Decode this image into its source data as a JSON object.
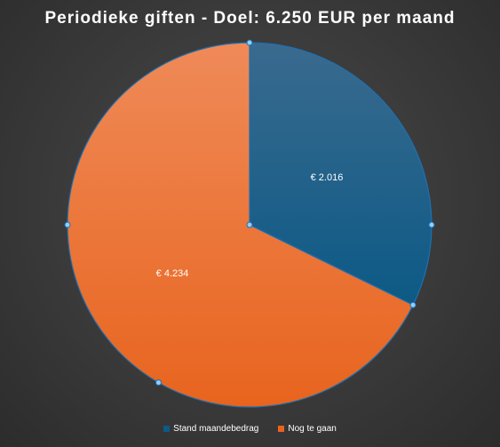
{
  "chart_data": {
    "type": "pie",
    "title": "Periodieke giften - Doel: 6.250 EUR per maand",
    "slices": [
      {
        "name": "Stand maandebedrag",
        "value": 2016,
        "label": "€ 2.016",
        "color_top": "#3a6a8e",
        "color_bottom": "#0c5a86"
      },
      {
        "name": "Nog te gaan",
        "value": 4234,
        "label": "€ 4.234",
        "color_top": "#ef8a58",
        "color_bottom": "#e8641e"
      }
    ],
    "legend_position": "bottom",
    "start_angle_deg": 0,
    "direction": "clockwise"
  }
}
